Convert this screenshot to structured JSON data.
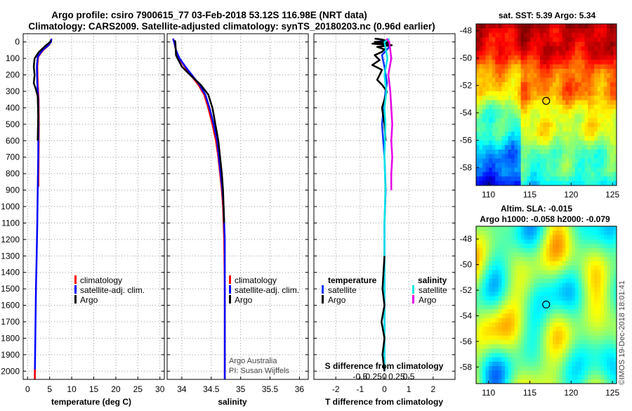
{
  "header": {
    "title_line1": "Argo profile: csiro 7900615_77 03-Feb-2018 53.12S 116.98E (NRT data)",
    "title_line2": "Climatology: CARS2009. Satellite-adjusted climatology: synTS_20180203.nc (0.96d earlier)"
  },
  "colors": {
    "climatology": "#ff0000",
    "satellite": "#0000ff",
    "argo": "#000000",
    "sat_temp": "#0033ff",
    "sat_sal": "#00e6e6",
    "argo_sal": "#e600e6"
  },
  "depth_ticks": [
    "0",
    "100",
    "200",
    "300",
    "400",
    "500",
    "600",
    "700",
    "800",
    "900",
    "1000",
    "1100",
    "1200",
    "1300",
    "1400",
    "1500",
    "1600",
    "1700",
    "1800",
    "1900",
    "2000"
  ],
  "chart_data": [
    {
      "type": "line",
      "id": "temperature",
      "xlabel": "temperature (deg C)",
      "ylabel": "depth",
      "xlim": [
        -1,
        31
      ],
      "ylim": [
        2050,
        -50
      ],
      "xticks": [
        "0",
        "5",
        "10",
        "15",
        "20",
        "25",
        "30"
      ],
      "legend": [
        "climatology",
        "satellite-adj. clim.",
        "Argo"
      ],
      "series": [
        {
          "name": "climatology",
          "color": "#ff0000",
          "points": [
            [
              5.4,
              -20
            ],
            [
              5.3,
              0
            ],
            [
              4.8,
              20
            ],
            [
              3.5,
              50
            ],
            [
              2.4,
              90
            ],
            [
              2.2,
              150
            ],
            [
              2.3,
              250
            ],
            [
              2.5,
              350
            ],
            [
              2.55,
              500
            ],
            [
              2.5,
              700
            ],
            [
              2.45,
              880
            ]
          ]
        },
        {
          "name": "satellite-adj. clim.",
          "color": "#0000ff",
          "points": [
            [
              5.4,
              -20
            ],
            [
              5.3,
              0
            ],
            [
              4.7,
              20
            ],
            [
              3.4,
              50
            ],
            [
              2.3,
              90
            ],
            [
              2.1,
              150
            ],
            [
              2.2,
              250
            ],
            [
              2.4,
              350
            ],
            [
              2.45,
              500
            ],
            [
              2.4,
              700
            ],
            [
              2.3,
              900
            ],
            [
              2.2,
              1100
            ],
            [
              2.05,
              1300
            ],
            [
              1.9,
              1500
            ],
            [
              1.8,
              1700
            ],
            [
              1.7,
              1900
            ],
            [
              1.65,
              2050
            ]
          ]
        },
        {
          "name": "Argo",
          "color": "#000000",
          "points": [
            [
              5.3,
              -10
            ],
            [
              5.1,
              0
            ],
            [
              4.2,
              20
            ],
            [
              2.6,
              60
            ],
            [
              1.6,
              100
            ],
            [
              1.4,
              150
            ],
            [
              1.6,
              200
            ],
            [
              1.4,
              250
            ],
            [
              1.8,
              280
            ],
            [
              2.3,
              330
            ],
            [
              2.4,
              450
            ],
            [
              2.3,
              600
            ]
          ]
        },
        {
          "name": "climatology-deep",
          "color": "#ff0000",
          "points": [
            [
              1.65,
              1990
            ],
            [
              1.65,
              2050
            ]
          ]
        }
      ]
    },
    {
      "type": "line",
      "id": "salinity",
      "xlabel": "salinity",
      "ylabel": "depth",
      "xlim": [
        33.75,
        36.15
      ],
      "ylim": [
        2050,
        -50
      ],
      "xticks": [
        "34",
        "34.5",
        "35",
        "35.5",
        "36"
      ],
      "legend": [
        "climatology",
        "satellite-adj. clim.",
        "Argo"
      ],
      "credit": [
        "Argo Australia",
        "PI: Susan Wijffels"
      ],
      "series": [
        {
          "name": "climatology",
          "color": "#ff0000",
          "points": [
            [
              33.85,
              -20
            ],
            [
              33.87,
              0
            ],
            [
              33.9,
              50
            ],
            [
              33.95,
              100
            ],
            [
              34.05,
              150
            ],
            [
              34.15,
              200
            ],
            [
              34.28,
              260
            ],
            [
              34.38,
              320
            ],
            [
              34.45,
              400
            ],
            [
              34.52,
              500
            ],
            [
              34.58,
              600
            ],
            [
              34.62,
              700
            ],
            [
              34.65,
              800
            ],
            [
              34.68,
              900
            ],
            [
              34.7,
              1000
            ],
            [
              34.72,
              1200
            ],
            [
              34.73,
              1500
            ],
            [
              34.73,
              2050
            ]
          ]
        },
        {
          "name": "satellite-adj. clim.",
          "color": "#0000ff",
          "points": [
            [
              33.85,
              -20
            ],
            [
              33.87,
              0
            ],
            [
              33.9,
              50
            ],
            [
              33.96,
              100
            ],
            [
              34.06,
              150
            ],
            [
              34.17,
              200
            ],
            [
              34.3,
              260
            ],
            [
              34.4,
              320
            ],
            [
              34.47,
              400
            ],
            [
              34.54,
              500
            ],
            [
              34.6,
              600
            ],
            [
              34.63,
              700
            ],
            [
              34.66,
              800
            ],
            [
              34.69,
              900
            ],
            [
              34.71,
              1000
            ],
            [
              34.73,
              1200
            ],
            [
              34.73,
              1500
            ],
            [
              34.73,
              2050
            ]
          ]
        },
        {
          "name": "Argo",
          "color": "#000000",
          "points": [
            [
              33.88,
              -10
            ],
            [
              33.89,
              0
            ],
            [
              33.9,
              80
            ],
            [
              34.0,
              150
            ],
            [
              34.14,
              200
            ],
            [
              34.32,
              260
            ],
            [
              34.45,
              320
            ],
            [
              34.52,
              400
            ],
            [
              34.57,
              500
            ],
            [
              34.62,
              600
            ],
            [
              34.65,
              700
            ],
            [
              34.68,
              800
            ],
            [
              34.7,
              900
            ],
            [
              34.71,
              1000
            ],
            [
              34.72,
              1100
            ]
          ]
        }
      ]
    },
    {
      "type": "line",
      "id": "difference",
      "xlabel": "T difference from climatology",
      "ylabel": "depth",
      "xlim": [
        -2.9,
        2.9
      ],
      "ylim": [
        2050,
        -50
      ],
      "xticks": [
        "-2",
        "-1",
        "0",
        "1",
        "2"
      ],
      "secondary_xlabel": "S difference from climatology",
      "secondary_xticks": [
        "-0.5",
        "-0.25",
        "0",
        "0.25",
        "0.5"
      ],
      "legend_temperature_title": "temperature",
      "legend_salinity_title": "salinity",
      "legend_temperature": [
        "satellite",
        "Argo"
      ],
      "legend_salinity": [
        "satellite",
        "Argo"
      ],
      "series": [
        {
          "name": "T satellite",
          "color": "#0033ff",
          "points": [
            [
              -0.3,
              -20
            ],
            [
              0.1,
              0
            ],
            [
              0.2,
              30
            ],
            [
              -0.1,
              80
            ],
            [
              0.0,
              150
            ],
            [
              0.1,
              250
            ],
            [
              0.0,
              350
            ],
            [
              -0.1,
              500
            ],
            [
              0.0,
              700
            ],
            [
              0.05,
              900
            ],
            [
              0.0,
              1100
            ],
            [
              0.0,
              1300
            ],
            [
              0.0,
              1500
            ],
            [
              0.0,
              1700
            ],
            [
              0.0,
              1900
            ],
            [
              0.0,
              2000
            ]
          ]
        },
        {
          "name": "T Argo",
          "color": "#000000",
          "points": [
            [
              -0.4,
              -20
            ],
            [
              -0.1,
              -15
            ],
            [
              0.1,
              -5
            ],
            [
              -0.4,
              0
            ],
            [
              0.2,
              5
            ],
            [
              -0.5,
              10
            ],
            [
              0.3,
              20
            ],
            [
              -0.3,
              30
            ],
            [
              0.0,
              45
            ],
            [
              -0.1,
              60
            ],
            [
              -0.4,
              80
            ],
            [
              -0.2,
              110
            ],
            [
              -0.5,
              140
            ],
            [
              -0.1,
              170
            ],
            [
              -0.2,
              200
            ],
            [
              -0.3,
              230
            ],
            [
              -0.1,
              260
            ],
            [
              0.1,
              300
            ],
            [
              -0.1,
              400
            ],
            [
              0.0,
              500
            ],
            [
              0.05,
              600
            ]
          ]
        },
        {
          "name": "S satellite",
          "color": "#00e6e6",
          "points": [
            [
              0.05,
              -20
            ],
            [
              0.0,
              0
            ],
            [
              0.03,
              100
            ],
            [
              0.0,
              200
            ],
            [
              0.02,
              300
            ],
            [
              0.0,
              400
            ],
            [
              0.01,
              500
            ],
            [
              0.0,
              700
            ],
            [
              0.01,
              900
            ],
            [
              0.0,
              1100
            ],
            [
              0.0,
              1300
            ],
            [
              0.0,
              1500
            ],
            [
              0.0,
              1700
            ],
            [
              0.0,
              1900
            ],
            [
              0.0,
              2000
            ]
          ]
        },
        {
          "name": "S Argo",
          "color": "#e600e6",
          "points": [
            [
              0.02,
              -20
            ],
            [
              0.05,
              0
            ],
            [
              0.07,
              100
            ],
            [
              0.04,
              200
            ],
            [
              0.06,
              300
            ],
            [
              0.07,
              400
            ],
            [
              0.08,
              500
            ],
            [
              0.07,
              600
            ],
            [
              0.08,
              700
            ],
            [
              0.07,
              800
            ],
            [
              0.07,
              900
            ]
          ]
        },
        {
          "name": "S Argo deep",
          "color": "#000000",
          "points": [
            [
              0.0,
              1300
            ],
            [
              -0.02,
              1500
            ],
            [
              0.0,
              1600
            ],
            [
              -0.03,
              1700
            ],
            [
              0.0,
              1800
            ],
            [
              -0.02,
              1900
            ],
            [
              0.0,
              2000
            ]
          ]
        }
      ]
    },
    {
      "type": "heatmap",
      "id": "sst_map",
      "title": "sat. SST: 5.39 Argo: 5.34",
      "xlim": [
        108.5,
        125.5
      ],
      "ylim": [
        -59.3,
        -47.5
      ],
      "xticks": [
        "110",
        "115",
        "120",
        "125"
      ],
      "yticks": [
        "-48",
        "-50",
        "-52",
        "-54",
        "-56",
        "-58"
      ],
      "marker": [
        116.98,
        -53.12
      ]
    },
    {
      "type": "heatmap",
      "id": "sla_map",
      "title_line1": "Altim. SLA: -0.015",
      "title_line2": "Argo h1000: -0.058 h2000: -0.079",
      "xlim": [
        108.5,
        125.5
      ],
      "ylim": [
        -59.3,
        -47.0
      ],
      "xticks": [
        "110",
        "115",
        "120",
        "125"
      ],
      "yticks": [
        "-48",
        "-50",
        "-52",
        "-54",
        "-56",
        "-58"
      ],
      "marker": [
        116.98,
        -53.12
      ]
    }
  ],
  "stamp": "©IMOS 19-Dec-2018 18:01:41"
}
